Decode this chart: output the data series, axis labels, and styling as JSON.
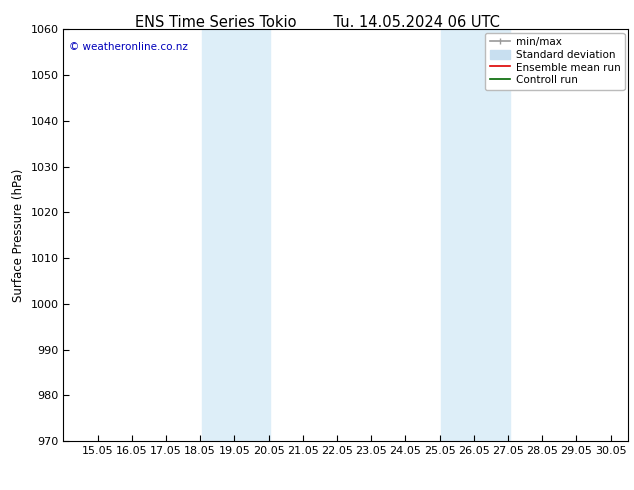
{
  "title_left": "ENS Time Series Tokio",
  "title_right": "Tu. 14.05.2024 06 UTC",
  "ylabel": "Surface Pressure (hPa)",
  "ylim": [
    970,
    1060
  ],
  "yticks": [
    970,
    980,
    990,
    1000,
    1010,
    1020,
    1030,
    1040,
    1050,
    1060
  ],
  "xlim": [
    14.0,
    30.5
  ],
  "xtick_labels": [
    "15.05",
    "16.05",
    "17.05",
    "18.05",
    "19.05",
    "20.05",
    "21.05",
    "22.05",
    "23.05",
    "24.05",
    "25.05",
    "26.05",
    "27.05",
    "28.05",
    "29.05",
    "30.05"
  ],
  "xtick_positions": [
    15.0,
    16.0,
    17.0,
    18.0,
    19.0,
    20.0,
    21.0,
    22.0,
    23.0,
    24.0,
    25.0,
    26.0,
    27.0,
    28.0,
    29.0,
    30.0
  ],
  "shaded_bands": [
    {
      "x_start": 18.05,
      "x_end": 20.05
    },
    {
      "x_start": 25.05,
      "x_end": 27.05
    }
  ],
  "shade_color": "#ddeef8",
  "watermark_text": "© weatheronline.co.nz",
  "watermark_color": "#0000bb",
  "legend_entries": [
    {
      "label": "min/max",
      "color": "#999999",
      "lw": 1.2
    },
    {
      "label": "Standard deviation",
      "color": "#c8dff0",
      "lw": 8
    },
    {
      "label": "Ensemble mean run",
      "color": "#dd0000",
      "lw": 1.2
    },
    {
      "label": "Controll run",
      "color": "#006600",
      "lw": 1.2
    }
  ],
  "bg_color": "#ffffff",
  "spine_color": "#000000",
  "tick_color": "#000000",
  "title_fontsize": 10.5,
  "label_fontsize": 8.5,
  "tick_fontsize": 8,
  "legend_fontsize": 7.5
}
